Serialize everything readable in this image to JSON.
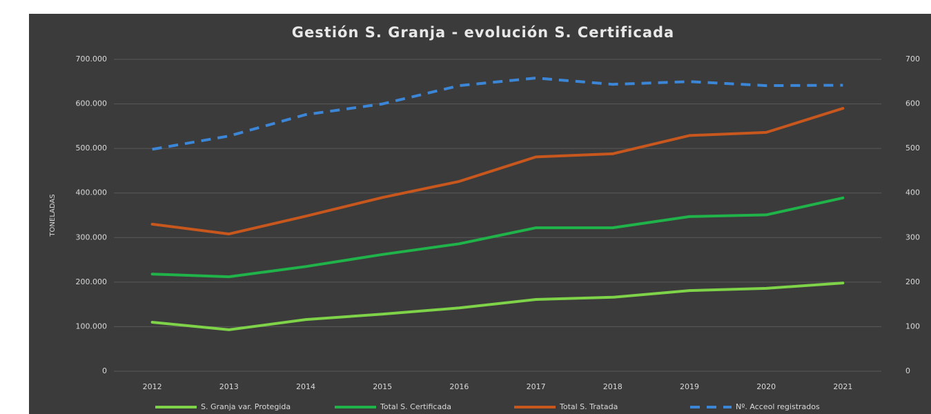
{
  "chart_data": {
    "type": "line",
    "title": "Gestión S. Granja - evolución S. Certificada",
    "y_label": "TONELADAS",
    "categories": [
      "2012",
      "2013",
      "2014",
      "2015",
      "2016",
      "2017",
      "2018",
      "2019",
      "2020",
      "2021"
    ],
    "series": [
      {
        "name": "S. Granja var. Protegida",
        "color": "#7ed348",
        "values": [
          110000,
          93000,
          116000,
          128000,
          142000,
          161000,
          166000,
          181000,
          186000,
          198000
        ]
      },
      {
        "name": "Total S. Certificada",
        "color": "#1fb34a",
        "values": [
          218000,
          212000,
          235000,
          262000,
          286000,
          322000,
          322000,
          347000,
          351000,
          389000
        ]
      },
      {
        "name": "Total S. Tratada",
        "color": "#c8571e",
        "values": [
          330000,
          308000,
          348000,
          390000,
          426000,
          481000,
          488000,
          529000,
          536000,
          590000
        ]
      },
      {
        "name": "Nº. Acceol registrados",
        "color": "#3c86d8",
        "dashed": true,
        "axis": "y2",
        "values": [
          498,
          528,
          576,
          600,
          641,
          658,
          644,
          650,
          641,
          642
        ]
      }
    ],
    "ylim": [
      0,
      700000
    ],
    "yticks": [
      0,
      {
        "value": 100000,
        "label": "100.000"
      },
      {
        "value": 200000,
        "label": "200.000"
      },
      {
        "value": 300000,
        "label": "300.000"
      },
      {
        "value": 400000,
        "label": "400.000"
      },
      {
        "value": 500000,
        "label": "500.000"
      },
      {
        "value": 600000,
        "label": "600.000"
      },
      {
        "value": 700000,
        "label": "700.000"
      }
    ],
    "y2lim": [
      0,
      700
    ],
    "y2ticks": [
      0,
      100,
      200,
      300,
      400,
      500,
      600,
      700
    ],
    "grid": true,
    "legend": "bottom"
  }
}
